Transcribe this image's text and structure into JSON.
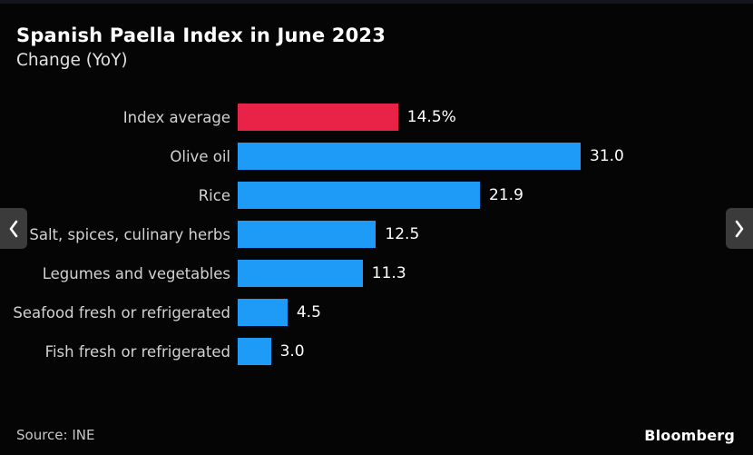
{
  "header": {
    "title": "Spanish Paella Index in June 2023",
    "subtitle": "Change (YoY)"
  },
  "chart_data": {
    "type": "bar",
    "orientation": "horizontal",
    "title": "Spanish Paella Index in June 2023",
    "subtitle": "Change (YoY)",
    "categories": [
      "Index average",
      "Olive oil",
      "Rice",
      "Salt, spices, culinary herbs",
      "Legumes and vegetables",
      "Seafood fresh or refrigerated",
      "Fish fresh or refrigerated"
    ],
    "values": [
      14.5,
      31.0,
      21.9,
      12.5,
      11.3,
      4.5,
      3.0
    ],
    "value_labels": [
      "14.5%",
      "31.0",
      "21.9",
      "12.5",
      "11.3",
      "4.5",
      "3.0"
    ],
    "unit": "percent",
    "xlim": [
      0,
      31
    ],
    "grid": false,
    "legend": false,
    "highlight_index": 0,
    "highlight_color": "#e92348",
    "bar_color": "#1e9bf7",
    "background_color": "#050505"
  },
  "footer": {
    "source": "Source: INE",
    "brand": "Bloomberg"
  },
  "nav": {
    "prev_icon": "chevron-left",
    "next_icon": "chevron-right"
  }
}
